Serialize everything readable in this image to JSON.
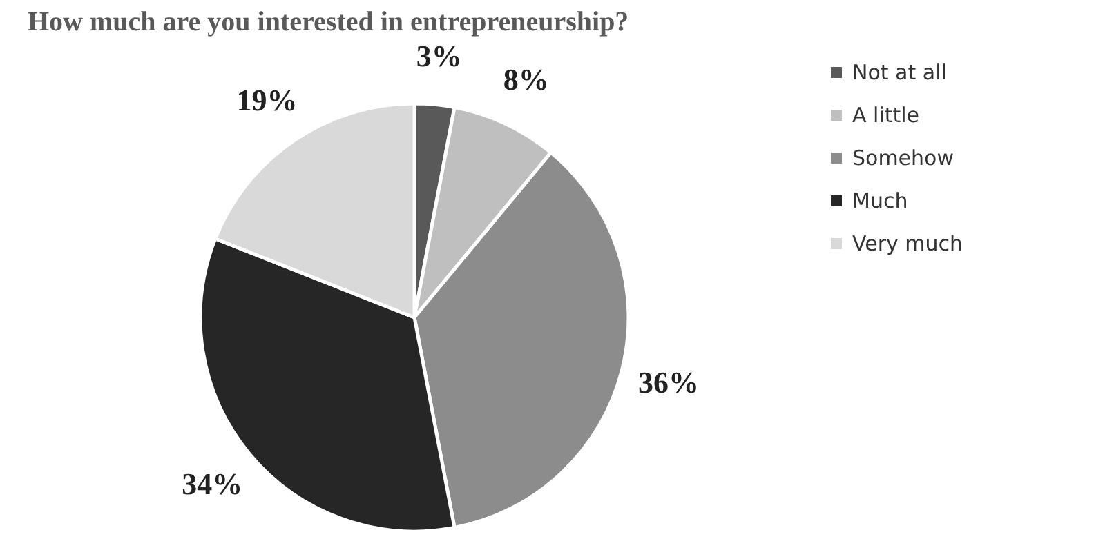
{
  "chart_data": {
    "type": "pie",
    "title": "How much are you interested in entrepreneurship?",
    "categories": [
      "Not at all",
      "A little",
      "Somehow",
      "Much",
      "Very much"
    ],
    "values": [
      3,
      8,
      36,
      34,
      19
    ],
    "colors": [
      "#595959",
      "#bfbfbf",
      "#8c8c8c",
      "#262626",
      "#d9d9d9"
    ],
    "value_labels": [
      "3%",
      "8%",
      "36%",
      "34%",
      "19%"
    ],
    "legend": "right"
  }
}
